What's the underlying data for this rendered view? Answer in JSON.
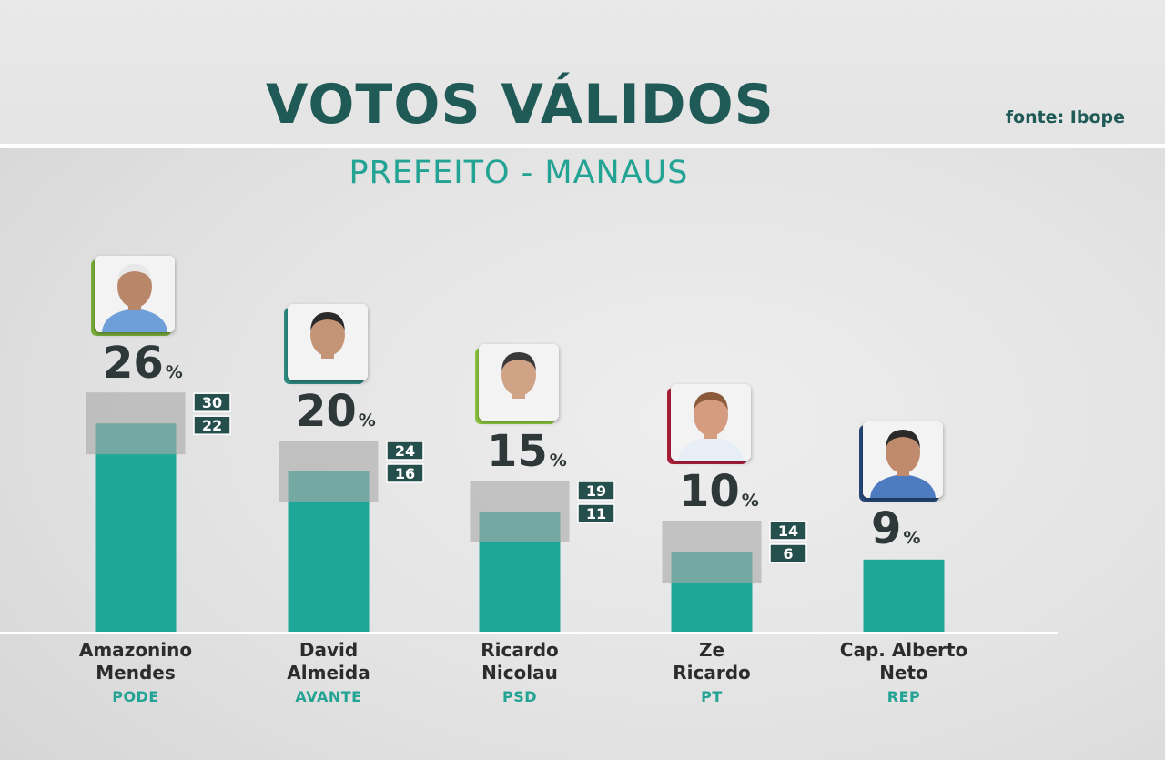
{
  "header": {
    "title": "VOTOS VÁLIDOS",
    "subtitle": "PREFEITO - MANAUS",
    "source": "fonte: Ibope"
  },
  "colors": {
    "bar": "#1ea696",
    "margin_band": "#a9a9a9",
    "title": "#1f5a57",
    "accent": "#23a394"
  },
  "chart_data": {
    "type": "bar",
    "unit": "%",
    "categories": [
      "Amazonino Mendes",
      "David Almeida",
      "Ricardo Nicolau",
      "Ze Ricardo",
      "Cap. Alberto Neto"
    ],
    "values": [
      26,
      20,
      15,
      10,
      9
    ],
    "upper": [
      30,
      24,
      19,
      14,
      null
    ],
    "lower": [
      22,
      16,
      11,
      6,
      null
    ],
    "title": "VOTOS VÁLIDOS",
    "subtitle": "PREFEITO - MANAUS",
    "ylim": [
      0,
      40
    ],
    "grid": false,
    "legend": "none"
  },
  "candidates": [
    {
      "name": "Amazonino\nMendes",
      "party": "PODE",
      "pct_label": "26",
      "upper_label": "30",
      "lower_label": "22",
      "accent": "#7bb13c",
      "skin": "#b8876a",
      "hair": "#e8e8e8",
      "shirt": "#6f9fd8"
    },
    {
      "name": "David\nAlmeida",
      "party": "AVANTE",
      "pct_label": "20",
      "upper_label": "24",
      "lower_label": "16",
      "accent": "#2f8f86",
      "skin": "#c49477",
      "hair": "#2a2a2a",
      "shirt": "#f4f4f4"
    },
    {
      "name": "Ricardo\nNicolau",
      "party": "PSD",
      "pct_label": "15",
      "upper_label": "19",
      "lower_label": "11",
      "accent": "#8cc63f",
      "skin": "#d0a286",
      "hair": "#3a3a3a",
      "shirt": "#f4f4f4"
    },
    {
      "name": "Ze\nRicardo",
      "party": "PT",
      "pct_label": "10",
      "upper_label": "14",
      "lower_label": "6",
      "accent": "#b0203a",
      "skin": "#d59c80",
      "hair": "#8a5a3a",
      "shirt": "#e8eef5"
    },
    {
      "name": "Cap. Alberto\nNeto",
      "party": "REP",
      "pct_label": "9",
      "upper_label": "",
      "lower_label": "",
      "accent": "#274a7a",
      "skin": "#c08a6c",
      "hair": "#2a2a2a",
      "shirt": "#4d7bbf"
    }
  ],
  "pct_sign": "%"
}
